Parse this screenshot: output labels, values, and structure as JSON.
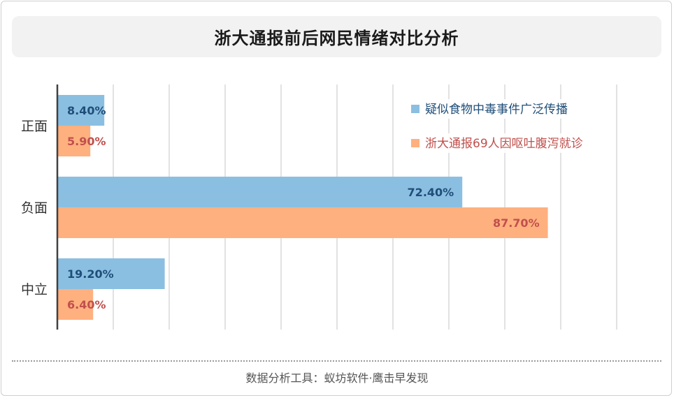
{
  "title": "浙大通报前后网民情绪对比分析",
  "footer": "数据分析工具：蚁坊软件·鹰击早发现",
  "chart_data": {
    "type": "bar",
    "orientation": "horizontal",
    "categories": [
      "正面",
      "负面",
      "中立"
    ],
    "series": [
      {
        "name": "疑似食物中毒事件广泛传播",
        "values": [
          8.4,
          72.4,
          19.2
        ],
        "labels": [
          "8.40%",
          "72.40%",
          "19.20%"
        ],
        "color": "#8bbfe1",
        "label_color": "#1f4e79"
      },
      {
        "name": "浙大通报69人因呕吐腹泻就诊",
        "values": [
          5.9,
          87.7,
          6.4
        ],
        "labels": [
          "5.90%",
          "87.70%",
          "6.40%"
        ],
        "color": "#ffb07f",
        "label_color": "#c0504d"
      }
    ],
    "xlim": [
      0,
      100
    ],
    "unit": "%",
    "grid": true,
    "legend_position": "top-right"
  }
}
